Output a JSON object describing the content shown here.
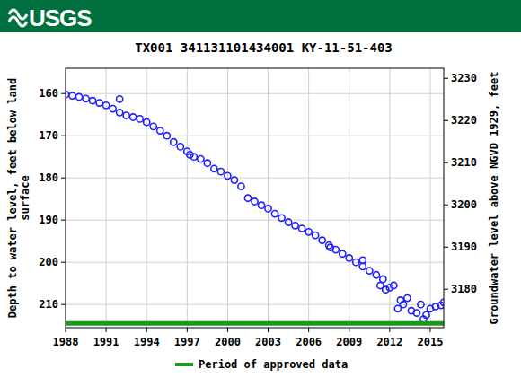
{
  "header": {
    "logo": "USGS"
  },
  "chart_data": {
    "type": "scatter",
    "title": "TX001 341131101434001 KY-11-51-403",
    "ylabel": [
      "Depth to water level, feet below land",
      "surface"
    ],
    "y2label": "Groundwater level above NGVD 1929, feet",
    "xlim": [
      1988,
      2016
    ],
    "xticks": [
      1988,
      1991,
      1994,
      1997,
      2000,
      2003,
      2006,
      2009,
      2012,
      2015
    ],
    "ylim": [
      215.5,
      154
    ],
    "yticks": [
      160,
      170,
      180,
      190,
      200,
      210
    ],
    "y2lim": [
      3170.9,
      3232.4
    ],
    "y2ticks": [
      3180,
      3190,
      3200,
      3210,
      3220,
      3230
    ],
    "grid": true,
    "legend": "bottom",
    "series": [
      {
        "type": "scatter",
        "marker": "circle",
        "color": "#2020ff",
        "x": [
          1988.0,
          1988.5,
          1989.0,
          1989.5,
          1990.0,
          1990.5,
          1991.0,
          1991.5,
          1992.0,
          1992.0,
          1992.5,
          1993.0,
          1993.5,
          1994.0,
          1994.5,
          1995.0,
          1995.5,
          1996.0,
          1996.5,
          1997.0,
          1997.2,
          1997.5,
          1998.0,
          1998.5,
          1999.0,
          1999.5,
          2000.0,
          2000.5,
          2001.0,
          2001.5,
          2002.0,
          2002.5,
          2003.0,
          2003.5,
          2004.0,
          2004.5,
          2005.0,
          2005.5,
          2006.0,
          2006.5,
          2007.0,
          2007.5,
          2007.6,
          2008.0,
          2008.5,
          2009.0,
          2009.5,
          2010.0,
          2010.0,
          2010.5,
          2011.0,
          2011.3,
          2011.5,
          2011.7,
          2012.0,
          2012.3,
          2012.6,
          2012.8,
          2013.0,
          2013.3,
          2013.6,
          2014.0,
          2014.3,
          2014.5,
          2014.7,
          2015.0,
          2015.4,
          2015.8,
          2016.0
        ],
        "values": [
          160.2,
          160.5,
          160.8,
          161.2,
          161.7,
          162.2,
          162.8,
          163.6,
          161.3,
          164.5,
          165.2,
          165.6,
          166.0,
          166.8,
          167.8,
          168.8,
          170.0,
          171.5,
          172.6,
          173.7,
          174.5,
          175.0,
          175.5,
          176.5,
          177.8,
          178.5,
          179.5,
          180.5,
          182.0,
          184.8,
          185.6,
          186.5,
          187.3,
          188.5,
          189.5,
          190.5,
          191.3,
          192.0,
          192.8,
          193.6,
          194.8,
          196.0,
          196.5,
          197.0,
          198.0,
          199.0,
          200.0,
          199.5,
          201.0,
          202.0,
          203.0,
          205.5,
          204.0,
          206.5,
          206.0,
          205.5,
          211.0,
          209.0,
          210.0,
          208.5,
          211.5,
          212.0,
          210.0,
          213.5,
          212.5,
          211.0,
          210.5,
          210.2,
          209.5
        ]
      },
      {
        "type": "line",
        "name": "Period of approved data",
        "color": "#1a9a1a",
        "x": [
          1988,
          2016
        ],
        "values": [
          214.5,
          214.5
        ]
      }
    ]
  }
}
